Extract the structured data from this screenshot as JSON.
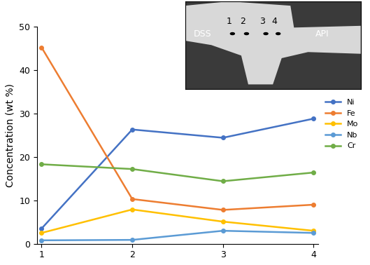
{
  "chart_data": {
    "type": "line",
    "x": [
      1,
      2,
      3,
      4
    ],
    "xlim": [
      0.95,
      4.05
    ],
    "xticks": [
      1,
      2,
      3,
      4
    ],
    "ylim": [
      0,
      50
    ],
    "yticks": [
      0,
      10,
      20,
      30,
      40,
      50
    ],
    "y_label": "Concentration (wt %)",
    "grid": false,
    "legend": "right",
    "marker": "o",
    "line_style": "solid",
    "series": [
      {
        "name": "Ni",
        "color": "#4472C4",
        "values": [
          3.5,
          26.3,
          24.4,
          28.8
        ]
      },
      {
        "name": "Fe",
        "color": "#ED7D31",
        "values": [
          45.2,
          10.3,
          7.8,
          9.0
        ]
      },
      {
        "name": "Mo",
        "color": "#FFC000",
        "values": [
          2.5,
          7.9,
          5.1,
          3.0
        ]
      },
      {
        "name": "Nb",
        "color": "#5B9BD5",
        "values": [
          0.8,
          0.9,
          3.0,
          2.5
        ]
      },
      {
        "name": "Cr",
        "color": "#70AD47",
        "values": [
          18.3,
          17.2,
          14.4,
          16.4
        ]
      }
    ],
    "inset": {
      "points": [
        "1",
        "2",
        "3",
        "4"
      ],
      "left_label": "DSS",
      "right_label": "API"
    }
  }
}
